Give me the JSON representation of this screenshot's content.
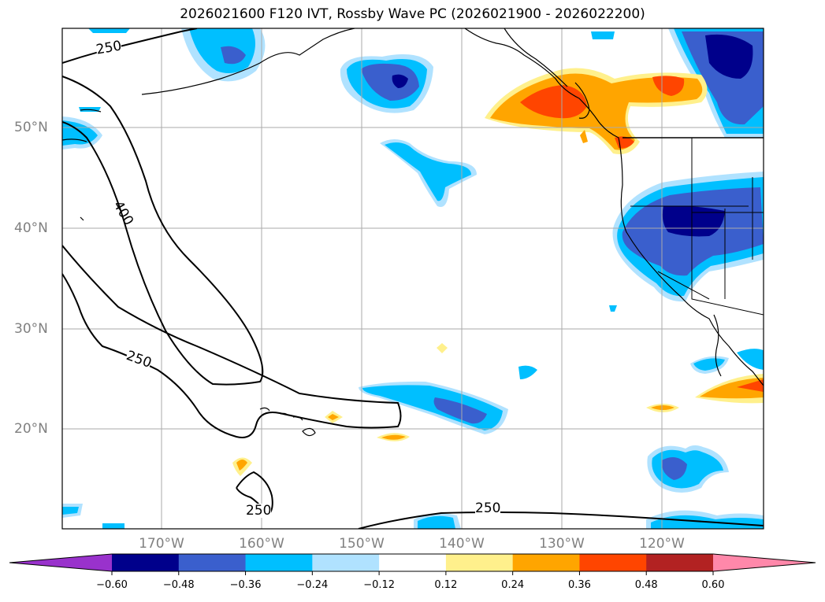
{
  "title": "2026021600 F120 IVT, Rossby Wave PC (2026021900 - 2026022200)",
  "latitude_labels": [
    "50°N",
    "40°N",
    "30°N",
    "20°N"
  ],
  "longitude_labels": [
    "170°W",
    "160°W",
    "150°W",
    "140°W",
    "130°W",
    "120°W"
  ],
  "contour_labels": [
    "250",
    "400",
    "250",
    "250",
    "250"
  ],
  "colorbar": {
    "ticks": [
      "−0.60",
      "−0.48",
      "−0.36",
      "−0.24",
      "−0.12",
      "0.12",
      "0.24",
      "0.36",
      "0.48",
      "0.60"
    ],
    "colors": [
      "#9932cc",
      "#00008b",
      "#3a5fcd",
      "#00bfff",
      "#b0e2ff",
      "#ffffff",
      "#fff08c",
      "#ffa500",
      "#ff4500",
      "#b22222",
      "#ff88aa"
    ]
  },
  "palette": {
    "coast": "#000000",
    "grid": "#aaaaaa",
    "contour": "#000000"
  }
}
